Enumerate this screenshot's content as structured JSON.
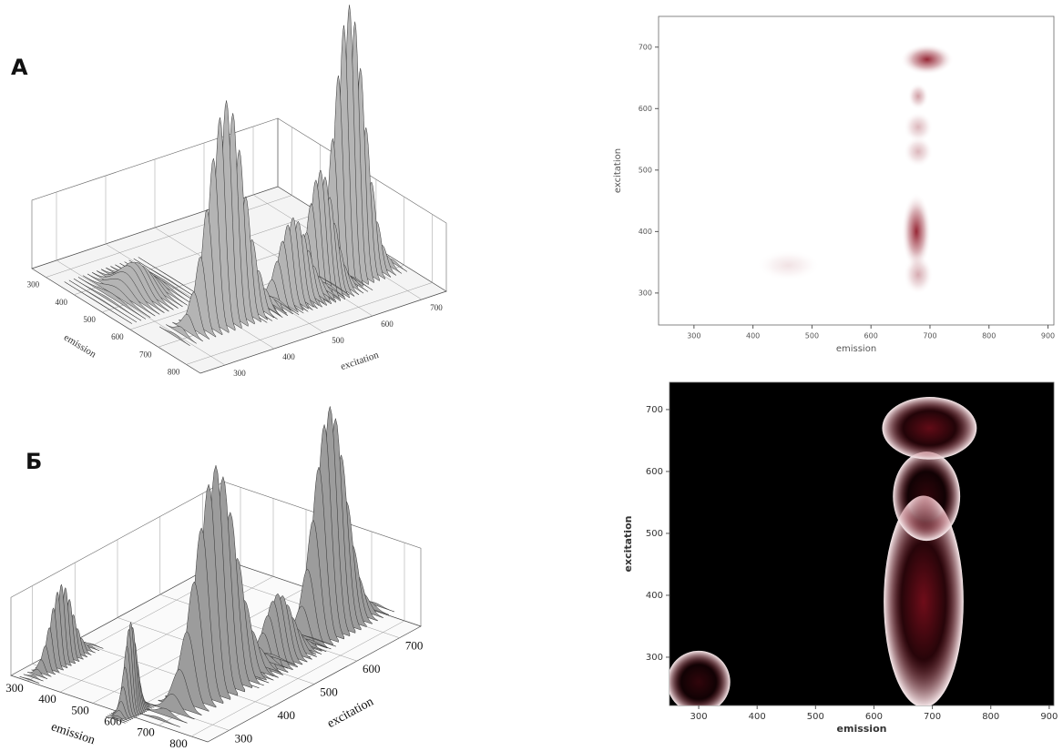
{
  "chart_data": [
    {
      "type": "surface3d",
      "label": "А",
      "xlabel": "emission",
      "ylabel": "excitation",
      "xlim": [
        250,
        850
      ],
      "ylim": [
        250,
        750
      ],
      "xticks": [
        300,
        400,
        500,
        600,
        700,
        800
      ],
      "yticks": [
        300,
        400,
        500,
        600,
        700
      ],
      "color": "#b4b4b4",
      "peaks": [
        {
          "emission": 680,
          "excitation": 400,
          "emission_width": 18,
          "excitation_width": 35,
          "intensity": 0.8
        },
        {
          "emission": 680,
          "excitation": 650,
          "emission_width": 16,
          "excitation_width": 30,
          "intensity": 1.0
        },
        {
          "emission": 690,
          "excitation": 530,
          "emission_width": 18,
          "excitation_width": 28,
          "intensity": 0.3
        },
        {
          "emission": 700,
          "excitation": 580,
          "emission_width": 18,
          "excitation_width": 25,
          "intensity": 0.45
        },
        {
          "emission": 460,
          "excitation": 340,
          "emission_width": 40,
          "excitation_width": 25,
          "intensity": 0.1
        }
      ]
    },
    {
      "type": "surface3d",
      "label": "Б",
      "xlabel": "emission",
      "ylabel": "excitation",
      "xlim": [
        250,
        850
      ],
      "ylim": [
        250,
        750
      ],
      "xticks": [
        300,
        400,
        500,
        600,
        700,
        800
      ],
      "yticks": [
        300,
        400,
        500,
        600,
        700
      ],
      "color": "#9c9c9c",
      "peaks": [
        {
          "emission": 680,
          "excitation": 400,
          "emission_width": 22,
          "excitation_width": 45,
          "intensity": 1.0
        },
        {
          "emission": 690,
          "excitation": 660,
          "emission_width": 20,
          "excitation_width": 35,
          "intensity": 1.0
        },
        {
          "emission": 700,
          "excitation": 530,
          "emission_width": 20,
          "excitation_width": 30,
          "intensity": 0.3
        },
        {
          "emission": 300,
          "excitation": 330,
          "emission_width": 10,
          "excitation_width": 25,
          "intensity": 0.35
        },
        {
          "emission": 600,
          "excitation": 262,
          "emission_width": 10,
          "excitation_width": 12,
          "intensity": 0.4
        }
      ]
    },
    {
      "type": "contour",
      "xlabel": "emission",
      "ylabel": "excitation",
      "xlim": [
        240,
        910
      ],
      "ylim": [
        248,
        750
      ],
      "xticks": [
        300,
        400,
        500,
        600,
        700,
        800,
        900
      ],
      "yticks": [
        300,
        400,
        500,
        600,
        700
      ],
      "background": "#ffffff",
      "color": "#8b1020",
      "edge_color": "#ffffff",
      "blobs": [
        {
          "emission": 460,
          "excitation": 345,
          "emission_width": 30,
          "excitation_width": 14,
          "intensity": 0.12
        },
        {
          "emission": 677,
          "excitation": 400,
          "emission_width": 14,
          "excitation_width": 35,
          "intensity": 0.9
        },
        {
          "emission": 680,
          "excitation": 330,
          "emission_width": 14,
          "excitation_width": 18,
          "intensity": 0.35
        },
        {
          "emission": 680,
          "excitation": 530,
          "emission_width": 14,
          "excitation_width": 14,
          "intensity": 0.3
        },
        {
          "emission": 680,
          "excitation": 570,
          "emission_width": 14,
          "excitation_width": 14,
          "intensity": 0.3
        },
        {
          "emission": 680,
          "excitation": 620,
          "emission_width": 10,
          "excitation_width": 12,
          "intensity": 0.4
        },
        {
          "emission": 695,
          "excitation": 680,
          "emission_width": 25,
          "excitation_width": 14,
          "intensity": 0.9
        }
      ]
    },
    {
      "type": "contour",
      "xlabel": "emission",
      "ylabel": "excitation",
      "xlim": [
        250,
        908
      ],
      "ylim": [
        222,
        744
      ],
      "xticks": [
        300,
        400,
        500,
        600,
        700,
        800,
        900
      ],
      "yticks": [
        300,
        400,
        500,
        600,
        700
      ],
      "background": "#000000",
      "color": "#8b1020",
      "edge_color": "#f7eaec",
      "blobs": [
        {
          "emission": 300,
          "excitation": 260,
          "emission_width": 30,
          "excitation_width": 28,
          "intensity": 0.35
        },
        {
          "emission": 685,
          "excitation": 390,
          "emission_width": 38,
          "excitation_width": 95,
          "intensity": 0.8
        },
        {
          "emission": 690,
          "excitation": 560,
          "emission_width": 32,
          "excitation_width": 40,
          "intensity": 0.35
        },
        {
          "emission": 695,
          "excitation": 670,
          "emission_width": 45,
          "excitation_width": 28,
          "intensity": 0.7
        }
      ]
    }
  ]
}
